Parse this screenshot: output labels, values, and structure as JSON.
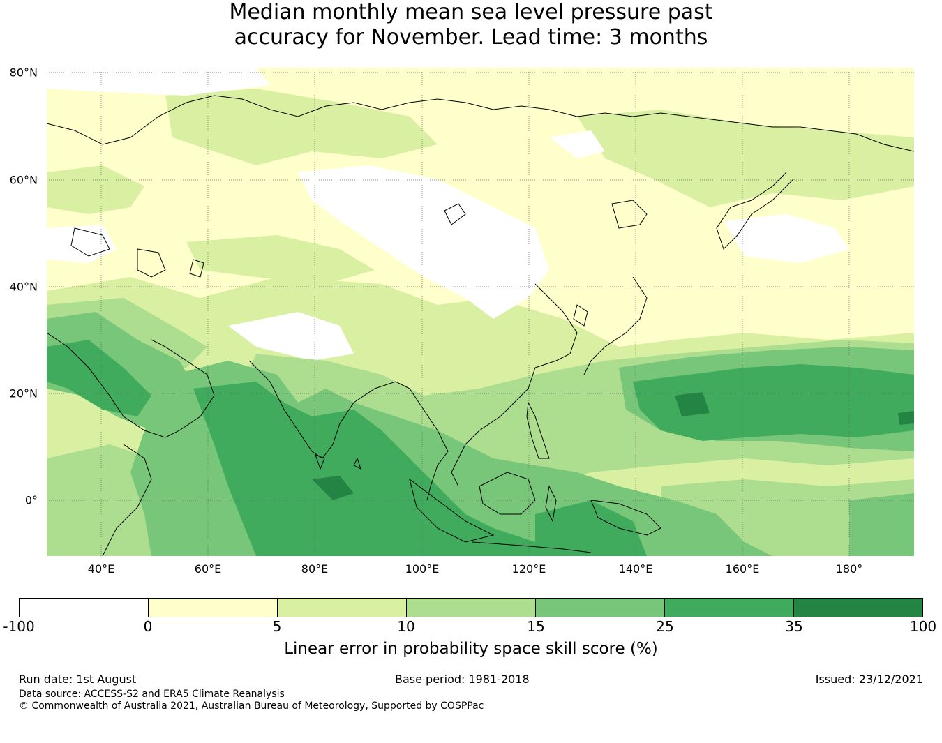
{
  "title": {
    "line1": "Median monthly mean sea level pressure past",
    "line2": "accuracy for November. Lead time: 3 months"
  },
  "map": {
    "lat_labels": [
      "80°N",
      "60°N",
      "40°N",
      "20°N",
      "0°"
    ],
    "lon_labels": [
      "40°E",
      "60°E",
      "80°E",
      "100°E",
      "120°E",
      "140°E",
      "160°E",
      "180°"
    ],
    "legend_colors": [
      "#ffffff",
      "#ffffcc",
      "#d9f0a3",
      "#addd8e",
      "#78c679",
      "#41ab5d",
      "#238443"
    ]
  },
  "colorbar": {
    "ticks": [
      "-100",
      "0",
      "5",
      "10",
      "15",
      "25",
      "35",
      "100"
    ],
    "label": "Linear error in probability space skill score (%)"
  },
  "footer": {
    "run_date": "Run date: 1st August",
    "base_period": "Base period: 1981-2018",
    "issued": "Issued: 23/12/2021",
    "data_source": "Data source: ACCESS-S2 and ERA5 Climate Reanalysis",
    "copyright": "© Commonwealth of Australia 2021, Australian Bureau of Meteorology, Supported by COSPPac"
  }
}
